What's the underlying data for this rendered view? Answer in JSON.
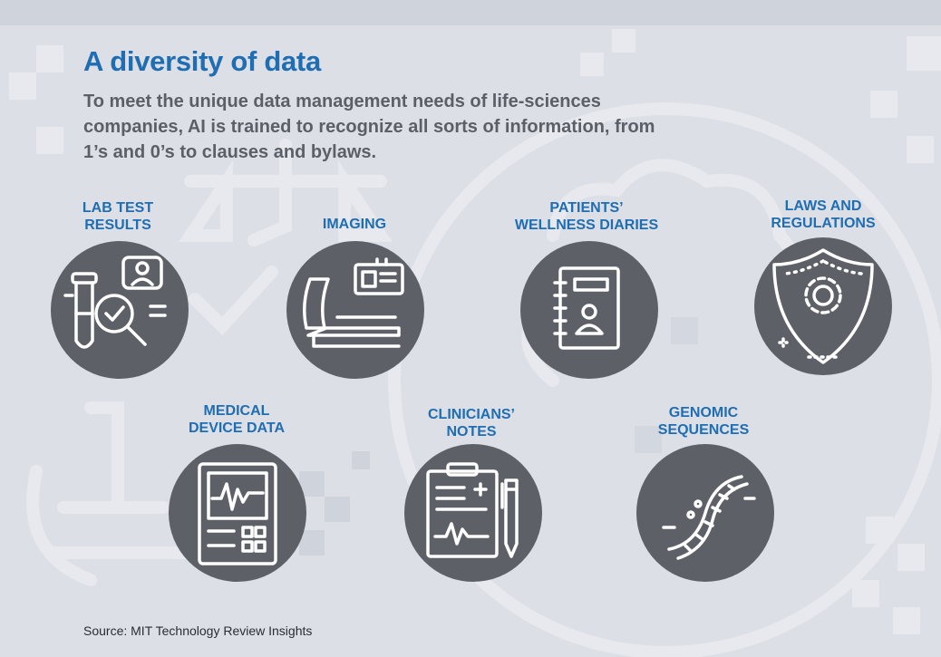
{
  "title": "A diversity of data",
  "subtitle": "To meet the unique data management needs of life-sciences companies, AI is trained to recognize all sorts of information, from 1’s and 0’s to clauses and bylaws.",
  "items": [
    {
      "label": "LAB TEST\nRESULTS",
      "icon": "lab-test-icon"
    },
    {
      "label": "IMAGING",
      "icon": "mri-scanner-icon"
    },
    {
      "label": "PATIENTS’\nWELLNESS DIARIES",
      "icon": "diary-icon"
    },
    {
      "label": "LAWS AND\nREGULATIONS",
      "icon": "shield-gear-icon"
    },
    {
      "label": "MEDICAL\nDEVICE DATA",
      "icon": "monitor-device-icon"
    },
    {
      "label": "CLINICIANS’\nNOTES",
      "icon": "clipboard-icon"
    },
    {
      "label": "GENOMIC\nSEQUENCES",
      "icon": "dna-icon"
    }
  ],
  "source": "Source: MIT Technology Review Insights",
  "colors": {
    "accent": "#1f6db3",
    "circle": "#5e6068",
    "background": "#dcdfe6",
    "body_text": "#5b5f68"
  }
}
